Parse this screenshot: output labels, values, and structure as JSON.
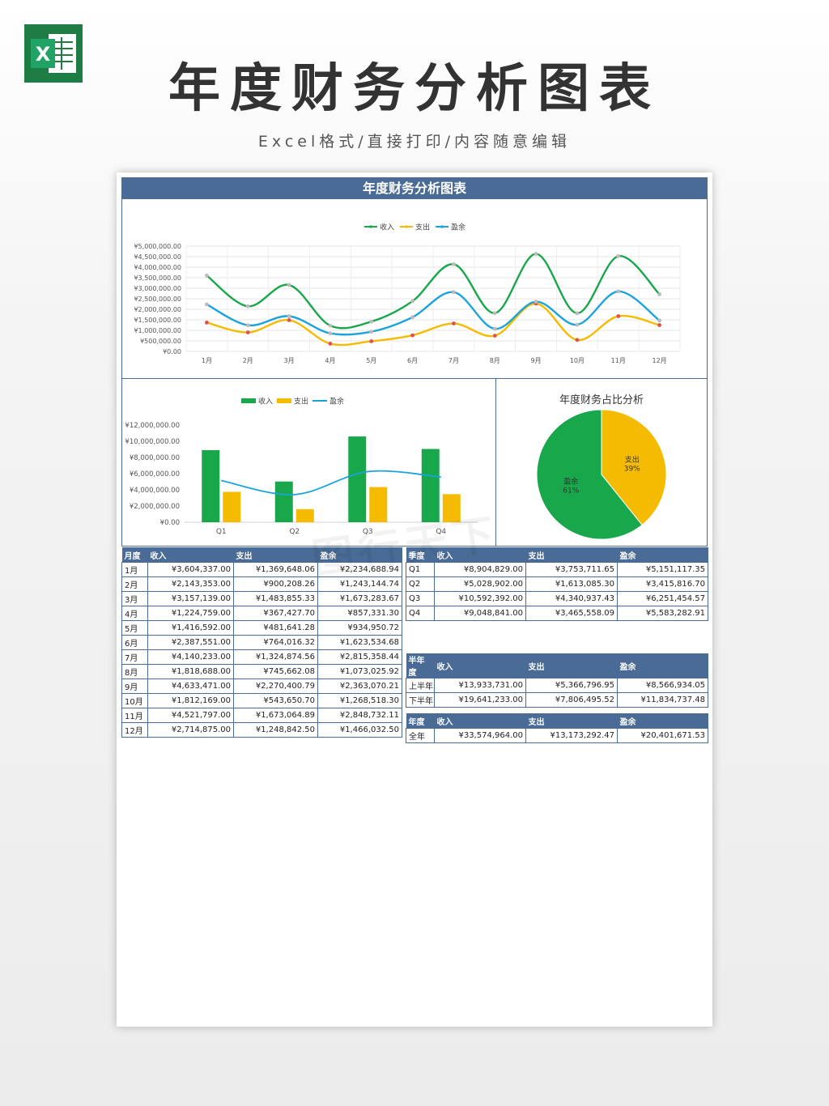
{
  "header": {
    "logo_letter": "X",
    "title": "年度财务分析图表",
    "subtitle": "Excel格式/直接打印/内容随意编辑"
  },
  "sheet": {
    "banner": "年度财务分析图表",
    "watermark": "图行天下"
  },
  "colors": {
    "income": "#18a84b",
    "expense": "#f5bb00",
    "surplus": "#1ba3dc",
    "header_blue": "#4a6b96"
  },
  "chart_data": [
    {
      "type": "line",
      "legend": [
        "收入",
        "支出",
        "盈余"
      ],
      "legend_position": "top-center",
      "categories": [
        "1月",
        "2月",
        "3月",
        "4月",
        "5月",
        "6月",
        "7月",
        "8月",
        "9月",
        "10月",
        "11月",
        "12月"
      ],
      "y_ticks": [
        "¥5,000,000.00",
        "¥4,500,000.00",
        "¥4,000,000.00",
        "¥3,500,000.00",
        "¥3,000,000.00",
        "¥2,500,000.00",
        "¥2,000,000.00",
        "¥1,500,000.00",
        "¥1,000,000.00",
        "¥500,000.00",
        "¥0.00"
      ],
      "ylim": [
        0,
        5000000
      ],
      "grid": true,
      "series": [
        {
          "name": "收入",
          "values": [
            3604337.0,
            2143353.0,
            3157139.0,
            1224759.0,
            1416592.0,
            2387551.0,
            4140233.0,
            1818688.0,
            4633471.0,
            1812169.0,
            4521797.0,
            2714875.0
          ]
        },
        {
          "name": "支出",
          "values": [
            1369648.06,
            900208.26,
            1483855.33,
            367427.7,
            481641.28,
            764016.32,
            1324874.56,
            745662.08,
            2270400.79,
            543650.7,
            1673064.89,
            1248842.5
          ]
        },
        {
          "name": "盈余",
          "values": [
            2234688.94,
            1243144.74,
            1673283.67,
            857331.3,
            934950.72,
            1623534.68,
            2815358.44,
            1073025.92,
            2363070.21,
            1268518.3,
            2848732.11,
            1466032.5
          ]
        }
      ]
    },
    {
      "type": "bar",
      "legend": [
        "收入",
        "支出",
        "盈余"
      ],
      "legend_position": "top-center",
      "categories": [
        "Q1",
        "Q2",
        "Q3",
        "Q4"
      ],
      "y_ticks": [
        "¥12,000,000.00",
        "¥10,000,000.00",
        "¥8,000,000.00",
        "¥6,000,000.00",
        "¥4,000,000.00",
        "¥2,000,000.00",
        "¥0.00"
      ],
      "ylim": [
        0,
        12000000
      ],
      "grid": false,
      "series": [
        {
          "name": "收入",
          "type": "bar",
          "values": [
            8904829.0,
            5028902.0,
            10592392.0,
            9048841.0
          ]
        },
        {
          "name": "支出",
          "type": "bar",
          "values": [
            3753711.65,
            1613085.3,
            4340937.43,
            3465558.09
          ]
        },
        {
          "name": "盈余",
          "type": "line",
          "values": [
            5151117.35,
            3415816.7,
            6251454.57,
            5583282.91
          ]
        }
      ]
    },
    {
      "type": "pie",
      "title": "年度财务占比分析",
      "slices": [
        {
          "name": "支出",
          "label": "支出",
          "pct_label": "39%",
          "value": 13173292.47
        },
        {
          "name": "盈余",
          "label": "盈余",
          "pct_label": "61%",
          "value": 20401671.53
        }
      ]
    }
  ],
  "monthly_table": {
    "headers": [
      "月度",
      "收入",
      "支出",
      "盈余"
    ],
    "rows": [
      [
        "1月",
        "¥3,604,337.00",
        "¥1,369,648.06",
        "¥2,234,688.94"
      ],
      [
        "2月",
        "¥2,143,353.00",
        "¥900,208.26",
        "¥1,243,144.74"
      ],
      [
        "3月",
        "¥3,157,139.00",
        "¥1,483,855.33",
        "¥1,673,283.67"
      ],
      [
        "4月",
        "¥1,224,759.00",
        "¥367,427.70",
        "¥857,331.30"
      ],
      [
        "5月",
        "¥1,416,592.00",
        "¥481,641.28",
        "¥934,950.72"
      ],
      [
        "6月",
        "¥2,387,551.00",
        "¥764,016.32",
        "¥1,623,534.68"
      ],
      [
        "7月",
        "¥4,140,233.00",
        "¥1,324,874.56",
        "¥2,815,358.44"
      ],
      [
        "8月",
        "¥1,818,688.00",
        "¥745,662.08",
        "¥1,073,025.92"
      ],
      [
        "9月",
        "¥4,633,471.00",
        "¥2,270,400.79",
        "¥2,363,070.21"
      ],
      [
        "10月",
        "¥1,812,169.00",
        "¥543,650.70",
        "¥1,268,518.30"
      ],
      [
        "11月",
        "¥4,521,797.00",
        "¥1,673,064.89",
        "¥2,848,732.11"
      ],
      [
        "12月",
        "¥2,714,875.00",
        "¥1,248,842.50",
        "¥1,466,032.50"
      ]
    ]
  },
  "quarter_table": {
    "headers": [
      "季度",
      "收入",
      "支出",
      "盈余"
    ],
    "rows": [
      [
        "Q1",
        "¥8,904,829.00",
        "¥3,753,711.65",
        "¥5,151,117.35"
      ],
      [
        "Q2",
        "¥5,028,902.00",
        "¥1,613,085.30",
        "¥3,415,816.70"
      ],
      [
        "Q3",
        "¥10,592,392.00",
        "¥4,340,937.43",
        "¥6,251,454.57"
      ],
      [
        "Q4",
        "¥9,048,841.00",
        "¥3,465,558.09",
        "¥5,583,282.91"
      ]
    ]
  },
  "half_table": {
    "headers": [
      "半年度",
      "收入",
      "支出",
      "盈余"
    ],
    "rows": [
      [
        "上半年",
        "¥13,933,731.00",
        "¥5,366,796.95",
        "¥8,566,934.05"
      ],
      [
        "下半年",
        "¥19,641,233.00",
        "¥7,806,495.52",
        "¥11,834,737.48"
      ]
    ]
  },
  "year_table": {
    "headers": [
      "年度",
      "收入",
      "支出",
      "盈余"
    ],
    "rows": [
      [
        "全年",
        "¥33,574,964.00",
        "¥13,173,292.47",
        "¥20,401,671.53"
      ]
    ]
  }
}
